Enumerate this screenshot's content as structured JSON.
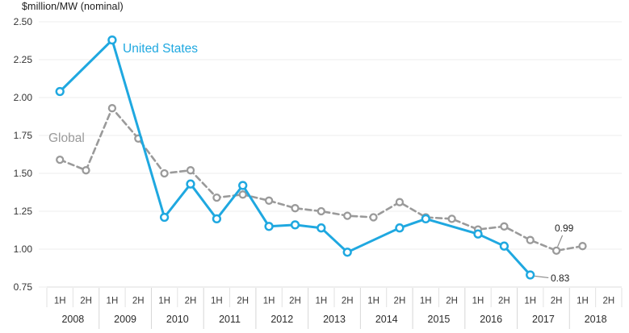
{
  "chart_data": {
    "type": "line",
    "title": "$million/MW (nominal)",
    "subtitle": "",
    "x_axis": {
      "years": [
        "2008",
        "2009",
        "2010",
        "2011",
        "2012",
        "2013",
        "2014",
        "2015",
        "2016",
        "2017",
        "2018"
      ],
      "half_labels": [
        "1H",
        "2H"
      ]
    },
    "y_axis": {
      "tick_labels": [
        "2.50",
        "2.25",
        "2.00",
        "1.75",
        "1.50",
        "1.25",
        "1.00",
        "0.75"
      ],
      "ylim": [
        0.75,
        2.5
      ]
    },
    "grid": "horizontal-only",
    "legend_position": "inline-series-labels",
    "series": [
      {
        "name": "Global",
        "style": "dashed",
        "color": "#9a9a9a",
        "values": [
          1.59,
          1.52,
          1.93,
          1.73,
          1.5,
          1.52,
          1.34,
          1.36,
          1.32,
          1.27,
          1.25,
          1.22,
          1.21,
          1.31,
          1.21,
          1.2,
          1.13,
          1.15,
          1.06,
          0.99,
          1.02,
          null
        ]
      },
      {
        "name": "United States",
        "style": "solid",
        "color": "#1fa8e0",
        "values": [
          2.04,
          null,
          2.38,
          null,
          1.21,
          1.43,
          1.2,
          1.42,
          1.15,
          1.16,
          1.14,
          0.98,
          null,
          1.14,
          1.2,
          null,
          1.1,
          1.02,
          0.83,
          null,
          null,
          null
        ]
      }
    ],
    "annotations": [
      {
        "label": "0.99",
        "series": "Global",
        "category": "2H 2017",
        "slot_index": 19,
        "value": 0.99,
        "placement": "above"
      },
      {
        "label": "0.83",
        "series": "United States",
        "category": "1H 2017",
        "slot_index": 18,
        "value": 0.83,
        "placement": "right"
      }
    ],
    "colors": {
      "united_states": "#1fa8e0",
      "global": "#9a9a9a",
      "gridline": "#ececec",
      "axis_border": "#dcdcdc",
      "half_separator": "#e2e2e2",
      "year_separator": "#d6d6d6",
      "tick_text": "#333333",
      "x_half_text": "#3c3c3c",
      "x_year_text": "#2b2b2b",
      "annotation_text": "#222222",
      "leader_line": "#888888"
    }
  }
}
